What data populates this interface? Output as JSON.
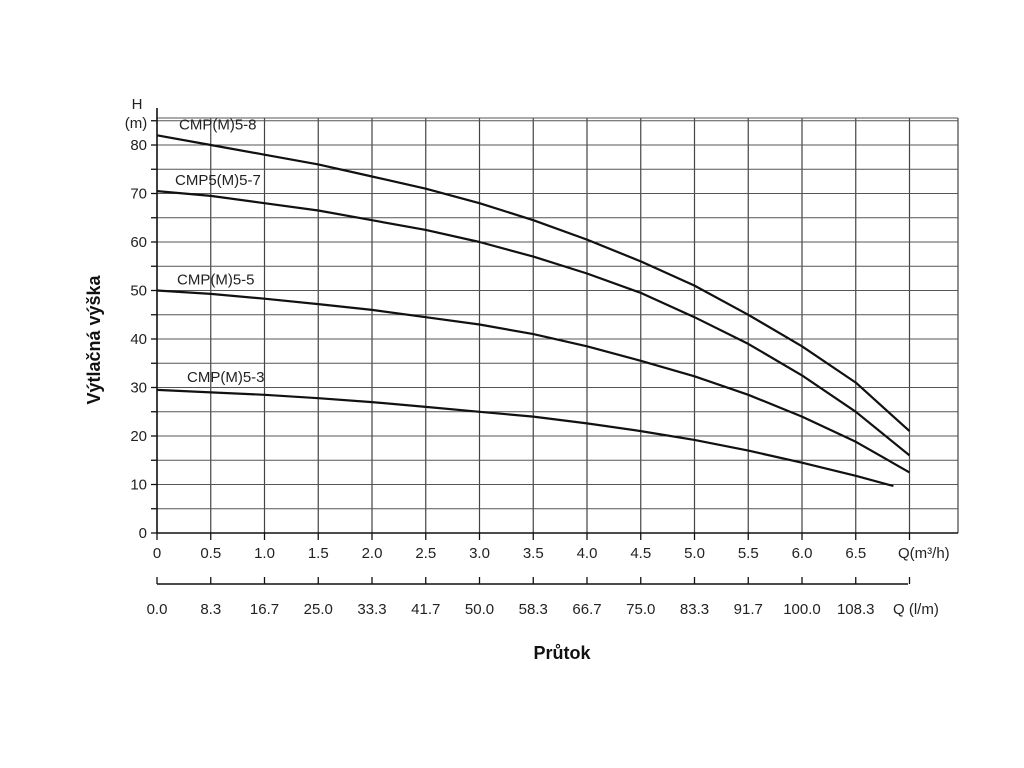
{
  "chart_data": {
    "type": "line",
    "xlabel": "Průtok",
    "ylabel": "Výtlačná výška",
    "y_unit_top": "H",
    "y_unit_bottom": "(m)",
    "x_unit": "Q(m³/h)",
    "x2_unit": "Q (l/m)",
    "xlim": [
      0,
      7.0
    ],
    "ylim": [
      0,
      85
    ],
    "x_ticks": [
      "0",
      "0.5",
      "1.0",
      "1.5",
      "2.0",
      "2.5",
      "3.0",
      "3.5",
      "4.0",
      "4.5",
      "5.0",
      "5.5",
      "6.0",
      "6.5"
    ],
    "x2_ticks": [
      "0.0",
      "8.3",
      "16.7",
      "25.0",
      "33.3",
      "41.7",
      "50.0",
      "58.3",
      "66.7",
      "75.0",
      "83.3",
      "91.7",
      "100.0",
      "108.3"
    ],
    "y_ticks": [
      "0",
      "10",
      "20",
      "30",
      "40",
      "50",
      "60",
      "70",
      "80"
    ],
    "grid": true,
    "series": [
      {
        "name": "CMP(M)5-8",
        "x": [
          0,
          0.5,
          1.0,
          1.5,
          2.0,
          2.5,
          3.0,
          3.5,
          4.0,
          4.5,
          5.0,
          5.5,
          6.0,
          6.5,
          7.0
        ],
        "y": [
          82,
          80,
          78,
          76,
          73.5,
          71,
          68,
          64.5,
          60.5,
          56,
          51,
          45,
          38.5,
          31,
          21
        ]
      },
      {
        "name": "CMP5(M)5-7",
        "x": [
          0,
          0.5,
          1.0,
          1.5,
          2.0,
          2.5,
          3.0,
          3.5,
          4.0,
          4.5,
          5.0,
          5.5,
          6.0,
          6.5,
          7.0
        ],
        "y": [
          70.5,
          69.5,
          68,
          66.5,
          64.5,
          62.5,
          60,
          57,
          53.5,
          49.5,
          44.5,
          39,
          32.5,
          25,
          16
        ]
      },
      {
        "name": "CMP(M)5-5",
        "x": [
          0,
          0.5,
          1.0,
          1.5,
          2.0,
          2.5,
          3.0,
          3.5,
          4.0,
          4.5,
          5.0,
          5.5,
          6.0,
          6.5,
          7.0
        ],
        "y": [
          50,
          49.3,
          48.3,
          47.2,
          46,
          44.5,
          43,
          41,
          38.5,
          35.5,
          32.3,
          28.5,
          24,
          18.8,
          12.5
        ]
      },
      {
        "name": "CMP(M)5-3",
        "x": [
          0,
          0.5,
          1.0,
          1.5,
          2.0,
          2.5,
          3.0,
          3.5,
          4.0,
          4.5,
          5.0,
          5.5,
          6.0,
          6.5,
          6.85
        ],
        "y": [
          29.5,
          29,
          28.5,
          27.8,
          27,
          26,
          25,
          24,
          22.6,
          21,
          19.2,
          17,
          14.5,
          11.8,
          9.7
        ]
      }
    ]
  }
}
